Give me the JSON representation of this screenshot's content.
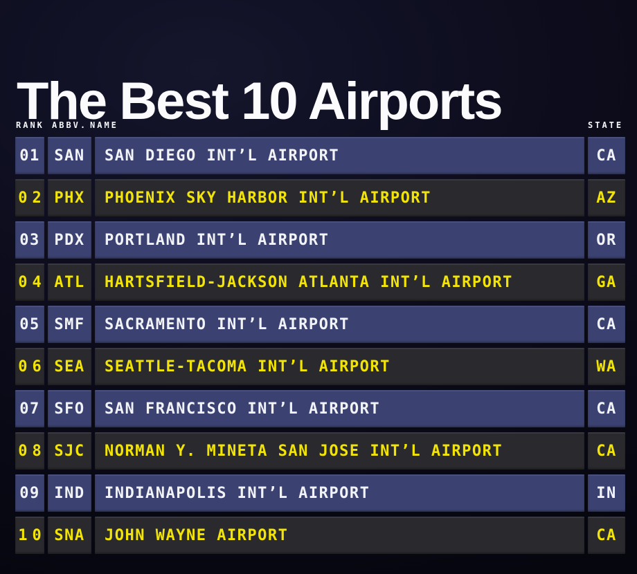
{
  "title": "The Best 10 Airports",
  "chart_data": {
    "type": "table",
    "title": "The Best 10 Airports",
    "columns": [
      {
        "key": "rank",
        "label": "RANK"
      },
      {
        "key": "abbv",
        "label": "ABBV."
      },
      {
        "key": "name",
        "label": "NAME"
      },
      {
        "key": "state",
        "label": "STATE"
      }
    ],
    "rows": [
      {
        "rank": "01",
        "abbv": "SAN",
        "name": "SAN DIEGO INT’L AIRPORT",
        "state": "CA"
      },
      {
        "rank": "02",
        "abbv": "PHX",
        "name": "PHOENIX SKY HARBOR INT’L AIRPORT",
        "state": "AZ"
      },
      {
        "rank": "03",
        "abbv": "PDX",
        "name": "PORTLAND INT’L AIRPORT",
        "state": "OR"
      },
      {
        "rank": "04",
        "abbv": "ATL",
        "name": "HARTSFIELD-JACKSON ATLANTA INT’L AIRPORT",
        "state": "GA"
      },
      {
        "rank": "05",
        "abbv": "SMF",
        "name": "SACRAMENTO INT’L AIRPORT",
        "state": "CA"
      },
      {
        "rank": "06",
        "abbv": "SEA",
        "name": "SEATTLE-TACOMA INT’L AIRPORT",
        "state": "WA"
      },
      {
        "rank": "07",
        "abbv": "SFO",
        "name": "SAN FRANCISCO INT’L AIRPORT",
        "state": "CA"
      },
      {
        "rank": "08",
        "abbv": "SJC",
        "name": "NORMAN Y. MINETA SAN JOSE INT’L AIRPORT",
        "state": "CA"
      },
      {
        "rank": "09",
        "abbv": "IND",
        "name": "INDIANAPOLIS INT’L AIRPORT",
        "state": "IN"
      },
      {
        "rank": "10",
        "abbv": "SNA",
        "name": "JOHN WAYNE AIRPORT",
        "state": "CA"
      }
    ],
    "layout": {
      "row_style_alternating": true,
      "odd_rows": "blue background, white text",
      "even_rows": "dark background, yellow text"
    }
  },
  "colors": {
    "background": "#0c0c1c",
    "row_primary_blue": "#3b4271",
    "row_alt_dark": "#2a2a2e",
    "text_light": "#f2f3f6",
    "text_accent_yellow": "#f2e406",
    "header_text": "#f5f6fa"
  }
}
